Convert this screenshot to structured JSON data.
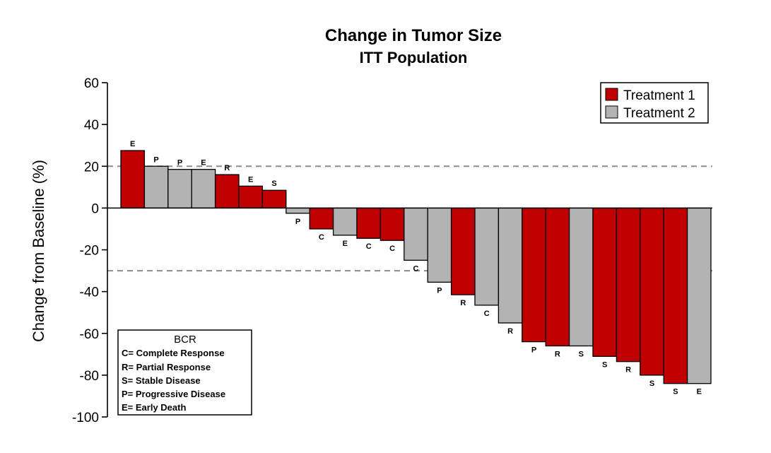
{
  "chart_data": {
    "type": "bar",
    "title": "Change in Tumor Size",
    "subtitle": "ITT Population",
    "ylabel": "Change from Baseline (%)",
    "xlabel": "",
    "ylim": [
      -100,
      60
    ],
    "yticks": [
      60,
      40,
      20,
      0,
      -20,
      -40,
      -60,
      -80,
      -100
    ],
    "reference_lines": [
      20,
      -30
    ],
    "grid": false,
    "legend_position": "top-right",
    "series": [
      {
        "name": "Treatment 1",
        "color": "#c00000"
      },
      {
        "name": "Treatment 2",
        "color": "#b3b3b3"
      }
    ],
    "bars": [
      {
        "value": 27.5,
        "series": 0,
        "label": "E"
      },
      {
        "value": 20,
        "series": 1,
        "label": "P"
      },
      {
        "value": 18.5,
        "series": 1,
        "label": "P"
      },
      {
        "value": 18.5,
        "series": 1,
        "label": "E"
      },
      {
        "value": 16,
        "series": 0,
        "label": "R"
      },
      {
        "value": 10.5,
        "series": 0,
        "label": "E"
      },
      {
        "value": 8.5,
        "series": 0,
        "label": "S"
      },
      {
        "value": -2.5,
        "series": 1,
        "label": "P"
      },
      {
        "value": -10,
        "series": 0,
        "label": "C"
      },
      {
        "value": -13,
        "series": 1,
        "label": "E"
      },
      {
        "value": -14.5,
        "series": 0,
        "label": "C"
      },
      {
        "value": -15.5,
        "series": 0,
        "label": "C"
      },
      {
        "value": -25,
        "series": 1,
        "label": "C"
      },
      {
        "value": -35.5,
        "series": 1,
        "label": "P"
      },
      {
        "value": -41.5,
        "series": 0,
        "label": "R"
      },
      {
        "value": -46.5,
        "series": 1,
        "label": "C"
      },
      {
        "value": -55,
        "series": 1,
        "label": "R"
      },
      {
        "value": -64,
        "series": 0,
        "label": "P"
      },
      {
        "value": -66,
        "series": 0,
        "label": "R"
      },
      {
        "value": -66,
        "series": 1,
        "label": "S"
      },
      {
        "value": -71,
        "series": 0,
        "label": "S"
      },
      {
        "value": -73.5,
        "series": 0,
        "label": "R"
      },
      {
        "value": -80,
        "series": 0,
        "label": "S"
      },
      {
        "value": -84,
        "series": 0,
        "label": "S"
      },
      {
        "value": -84,
        "series": 1,
        "label": "E"
      }
    ],
    "bcr_legend": {
      "title": "BCR",
      "items": [
        "C= Complete Response",
        "R= Partial Response",
        "S= Stable Disease",
        "P= Progressive Disease",
        "E= Early Death"
      ]
    }
  }
}
